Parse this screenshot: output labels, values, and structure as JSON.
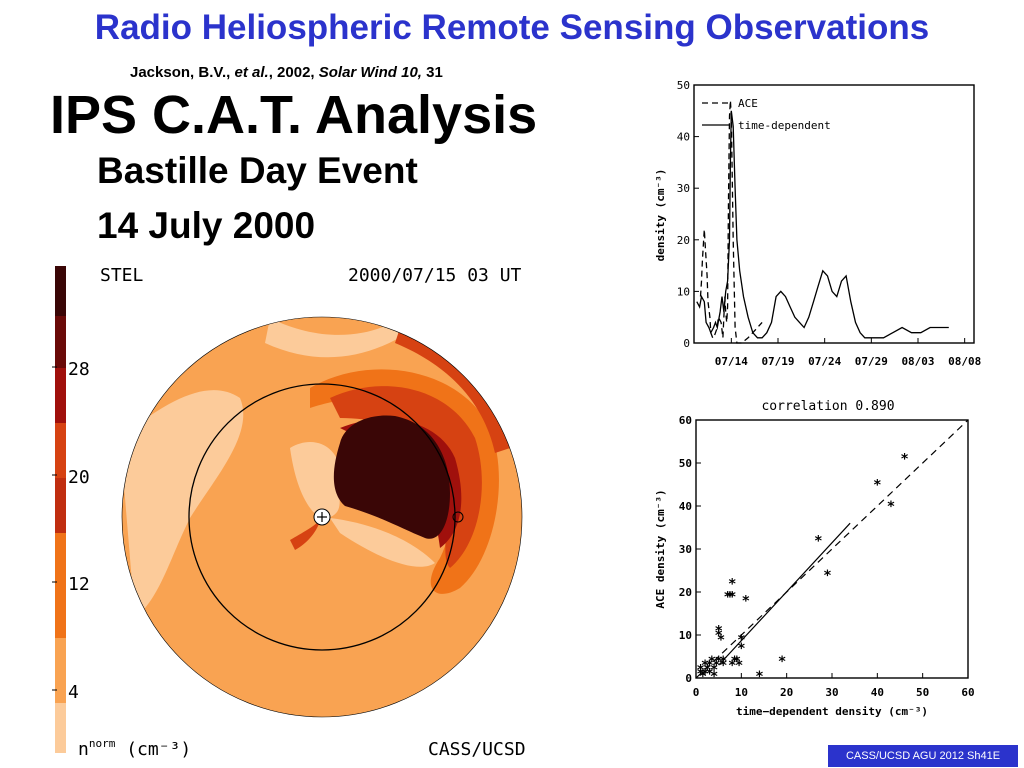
{
  "header": {
    "title": "Radio Heliospheric Remote Sensing Observations",
    "citation_author": "Jackson, B.V., ",
    "citation_etal": "et al.",
    "citation_year": ", 2002, ",
    "citation_journal": "Solar Wind 10,",
    "citation_page": " 31"
  },
  "slide": {
    "heading": "IPS C.A.T. Analysis",
    "event": "Bastille Day Event",
    "date": "14 July 2000"
  },
  "tomography": {
    "label_left": "STEL",
    "timestamp": "2000/07/15 03 UT",
    "colorbar_ticks": [
      "28",
      "20",
      "12",
      "4"
    ],
    "unit_label_n": "n",
    "unit_label_sup": "norm",
    "unit_label_rest": "(cm⁻³)",
    "credit": "CASS/UCSD",
    "colors": {
      "lightest": "#fccb9a",
      "light": "#f9a352",
      "mid": "#f07318",
      "dark": "#d64212",
      "darker": "#a0100c",
      "darkest": "#3a0606"
    }
  },
  "footer": {
    "badge": "CASS/UCSD AGU 2012 Sh41E"
  },
  "chart_data": [
    {
      "type": "line",
      "ylabel": "density (cm⁻³)",
      "ylim": [
        0,
        50
      ],
      "yticks": [
        "0",
        "10",
        "20",
        "30",
        "40",
        "50"
      ],
      "xticks": [
        "07/14",
        "07/19",
        "07/24",
        "07/29",
        "08/03",
        "08/08"
      ],
      "xlim": [
        0,
        30
      ],
      "legend_position": "top-left",
      "series": [
        {
          "name": "ACE",
          "style": "dashed",
          "x": [
            0.4,
            0.5,
            0.6,
            0.8,
            0.9,
            1.1,
            1.2,
            1.4,
            1.5,
            1.7,
            1.8,
            2.0,
            2.2,
            2.3,
            2.6,
            2.8,
            3.0,
            3.1,
            3.2,
            3.3,
            3.4,
            3.5,
            3.6,
            3.7,
            3.9,
            4.1,
            4.3,
            4.8,
            5.5,
            6.0,
            6.5,
            7.0
          ],
          "y": [
            9,
            12,
            16,
            22,
            19,
            13,
            8,
            5,
            2,
            1,
            1,
            2,
            3,
            5,
            4,
            1,
            9,
            6,
            4,
            7,
            28,
            44,
            47,
            44,
            20,
            3,
            0,
            0,
            1,
            2,
            3,
            4
          ]
        },
        {
          "name": "time-dependent",
          "style": "solid",
          "x": [
            0,
            0.3,
            0.5,
            0.8,
            1.0,
            1.3,
            1.5,
            1.8,
            2.0,
            2.2,
            2.5,
            2.7,
            2.9,
            3.1,
            3.3,
            3.5,
            3.6,
            3.7,
            3.9,
            4.1,
            4.3,
            4.6,
            5.0,
            5.5,
            6.0,
            6.5,
            7.0,
            7.5,
            8.0,
            8.5,
            9.0,
            9.5,
            10.0,
            10.5,
            11.0,
            11.5,
            12.0,
            12.5,
            13.0,
            13.5,
            14.0,
            14.5,
            15.0,
            15.5,
            16.0,
            16.5,
            17.0,
            17.5,
            18.0,
            19.0,
            20.0,
            21.0,
            22.0,
            23.0,
            24.0,
            25.0,
            26.0,
            27.0
          ],
          "y": [
            8,
            7,
            9,
            8,
            4,
            3,
            2,
            3,
            4,
            3,
            6,
            9,
            6,
            10,
            12,
            20,
            35,
            45,
            42,
            30,
            20,
            14,
            9,
            5,
            2,
            1,
            1,
            2,
            4,
            9,
            10,
            9,
            7,
            5,
            4,
            3,
            5,
            8,
            11,
            14,
            13,
            10,
            9,
            12,
            13,
            8,
            4,
            2,
            1,
            1,
            1,
            2,
            3,
            2,
            2,
            3,
            3,
            3
          ]
        }
      ]
    },
    {
      "type": "scatter",
      "title": "correlation  0.890",
      "xlabel": "time−dependent   density (cm⁻³)",
      "ylabel": "ACE density (cm⁻³)",
      "xlim": [
        0,
        60
      ],
      "ylim": [
        0,
        60
      ],
      "xticks": [
        "0",
        "10",
        "20",
        "30",
        "40",
        "50",
        "60"
      ],
      "yticks": [
        "0",
        "10",
        "20",
        "30",
        "40",
        "50",
        "60"
      ],
      "points": [
        [
          1,
          1
        ],
        [
          1,
          2
        ],
        [
          1.5,
          0.5
        ],
        [
          2,
          3
        ],
        [
          2,
          1
        ],
        [
          2.5,
          2
        ],
        [
          3,
          3
        ],
        [
          3,
          1
        ],
        [
          3.5,
          4
        ],
        [
          4,
          2
        ],
        [
          4,
          0.5
        ],
        [
          4.5,
          3
        ],
        [
          5,
          4
        ],
        [
          5,
          11
        ],
        [
          5,
          10
        ],
        [
          5.5,
          9
        ],
        [
          6,
          3
        ],
        [
          6,
          4
        ],
        [
          7,
          19
        ],
        [
          7.5,
          19
        ],
        [
          8,
          22
        ],
        [
          8,
          19
        ],
        [
          8,
          3
        ],
        [
          8.5,
          4
        ],
        [
          9,
          4
        ],
        [
          9.5,
          3
        ],
        [
          10,
          9
        ],
        [
          10,
          7
        ],
        [
          11,
          18
        ],
        [
          14,
          0.5
        ],
        [
          19,
          4
        ],
        [
          27,
          32
        ],
        [
          29,
          24
        ],
        [
          40,
          45
        ],
        [
          43,
          40
        ],
        [
          46,
          51
        ]
      ],
      "reference_lines": [
        {
          "style": "dashed",
          "x": [
            0,
            62
          ],
          "y": [
            0,
            62
          ]
        },
        {
          "style": "solid",
          "x": [
            5,
            34
          ],
          "y": [
            3,
            36
          ]
        }
      ]
    }
  ]
}
